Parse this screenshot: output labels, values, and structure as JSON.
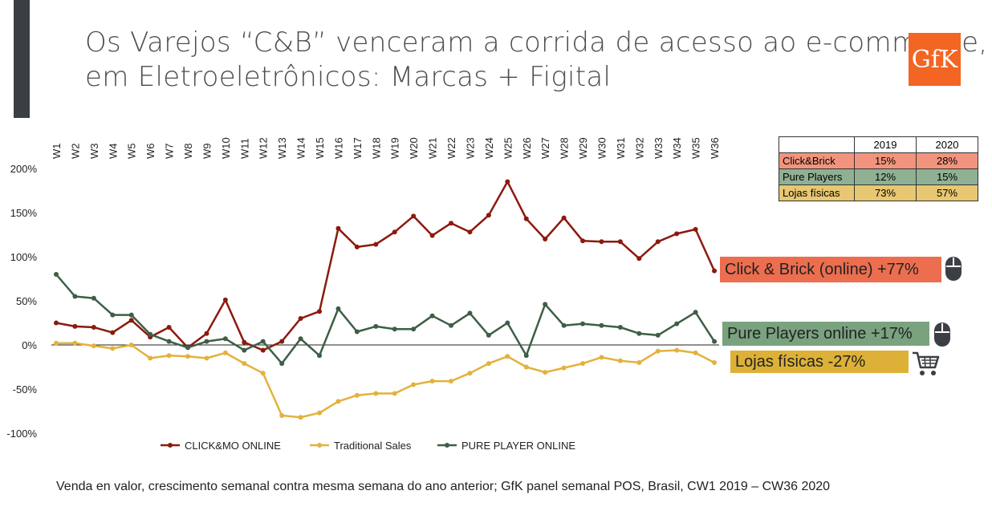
{
  "title_line1": "Os Varejos “C&B” venceram a corrida de acesso ao e-commerce,",
  "title_line2": "em Eletroeletrônicos: Marcas + Figital",
  "logo_text": "GfK",
  "colors": {
    "click_mo": "#8b1a0e",
    "traditional": "#e3b23c",
    "pure_player": "#3e5e45",
    "callout_cb": "#ec6e4f",
    "callout_pp": "#7aa27f",
    "callout_lf": "#ddb137",
    "logo": "#f26522"
  },
  "table": {
    "headers": [
      "",
      "2019",
      "2020"
    ],
    "rows": [
      {
        "label": "Click&Brick",
        "v2019": "15%",
        "v2020": "28%"
      },
      {
        "label": "Pure Players",
        "v2019": "12%",
        "v2020": "15%"
      },
      {
        "label": "Lojas físicas",
        "v2019": "73%",
        "v2020": "57%"
      }
    ]
  },
  "callouts": {
    "click_brick": "Click & Brick (online) +77%",
    "pure_players": "Pure Players online +17%",
    "lojas": "Lojas físicas -27%"
  },
  "icons": {
    "click_brick": "computer-mouse-icon",
    "pure_players": "computer-mouse-icon",
    "lojas": "shopping-cart-icon"
  },
  "footer": "Venda en valor, crescimento semanal contra mesma semana do ano anterior; GfK panel semanal POS, Brasil, CW1 2019 – CW36 2020",
  "chart_data": {
    "type": "line",
    "x": [
      "W1",
      "W2",
      "W3",
      "W4",
      "W5",
      "W6",
      "W7",
      "W8",
      "W9",
      "W10",
      "W11",
      "W12",
      "W13",
      "W14",
      "W15",
      "W16",
      "W17",
      "W18",
      "W19",
      "W20",
      "W21",
      "W22",
      "W23",
      "W24",
      "W25",
      "W26",
      "W27",
      "W28",
      "W29",
      "W30",
      "W31",
      "W32",
      "W33",
      "W34",
      "W35",
      "W36"
    ],
    "y_ticks": [
      "200%",
      "150%",
      "100%",
      "50%",
      "0%",
      "-50%",
      "-100%"
    ],
    "ylim": [
      -100,
      200
    ],
    "series": [
      {
        "name": "CLICK&MO ONLINE",
        "values": [
          25,
          21,
          20,
          14,
          28,
          9,
          20,
          -3,
          13,
          51,
          3,
          -6,
          4,
          30,
          38,
          132,
          111,
          114,
          128,
          146,
          124,
          138,
          128,
          147,
          185,
          143,
          120,
          144,
          118,
          117,
          117,
          98,
          117,
          126,
          131,
          84
        ]
      },
      {
        "name": "Traditional Sales",
        "values": [
          2,
          2,
          -1,
          -4,
          0,
          -15,
          -12,
          -13,
          -15,
          -9,
          -21,
          -32,
          -80,
          -82,
          -77,
          -64,
          -57,
          -55,
          -55,
          -45,
          -41,
          -41,
          -32,
          -21,
          -13,
          -25,
          -31,
          -26,
          -21,
          -14,
          -18,
          -20,
          -7,
          -6,
          -9,
          -20
        ]
      },
      {
        "name": "PURE PLAYER ONLINE",
        "values": [
          80,
          55,
          53,
          34,
          34,
          12,
          4,
          -3,
          4,
          7,
          -6,
          4,
          -21,
          7,
          -12,
          41,
          15,
          21,
          18,
          18,
          33,
          22,
          36,
          11,
          25,
          -12,
          46,
          22,
          24,
          22,
          20,
          13,
          11,
          24,
          37,
          4
        ]
      }
    ]
  }
}
